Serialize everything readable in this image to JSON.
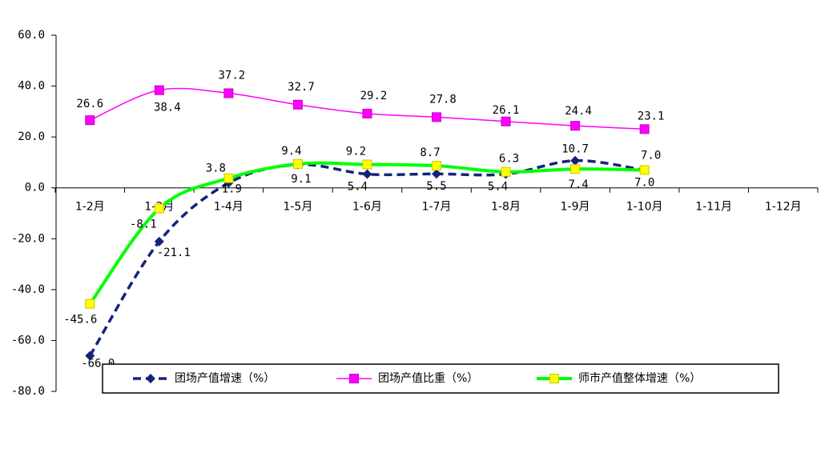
{
  "chart_data": {
    "type": "line",
    "categories": [
      "1-2月",
      "1-3月",
      "1-4月",
      "1-5月",
      "1-6月",
      "1-7月",
      "1-8月",
      "1-9月",
      "1-10月",
      "1-11月",
      "1-12月"
    ],
    "series": [
      {
        "name": "团场产值增速（%）",
        "color": "#14237a",
        "marker_color": "#14237a",
        "marker": "diamond",
        "dashed": true,
        "values": [
          -66.0,
          -21.1,
          1.9,
          9.1,
          5.4,
          5.5,
          5.4,
          10.7,
          7.0,
          null,
          null
        ],
        "value_labels": [
          "-66.0",
          "-21.1",
          "1.9",
          "9.1",
          "5.4",
          "5.5",
          "5.4",
          "10.7",
          "7.0",
          null,
          null
        ]
      },
      {
        "name": "团场产值比重（%）",
        "color": "#ff00ff",
        "marker_color": "#ff00ff",
        "marker": "square",
        "dashed": false,
        "values": [
          26.6,
          38.4,
          37.2,
          32.7,
          29.2,
          27.8,
          26.1,
          24.4,
          23.1,
          null,
          null
        ],
        "value_labels": [
          "26.6",
          "38.4",
          "37.2",
          "32.7",
          "29.2",
          "27.8",
          "26.1",
          "24.4",
          "23.1",
          null,
          null
        ]
      },
      {
        "name": "师市产值整体增速（%）",
        "color": "#00ff00",
        "marker_color": "#ffff00",
        "marker": "square",
        "dashed": false,
        "values": [
          -45.6,
          -8.1,
          3.8,
          9.4,
          9.2,
          8.7,
          6.3,
          7.4,
          7.0,
          null,
          null
        ],
        "value_labels": [
          "-45.6",
          "-8.1",
          "3.8",
          "9.4",
          "9.2",
          "8.7",
          "6.3",
          "7.4",
          "7.0",
          null,
          null
        ]
      }
    ],
    "ylim": [
      -80,
      60
    ],
    "yticks": [
      {
        "value": -80,
        "label": "-80.0"
      },
      {
        "value": -60,
        "label": "-60.0"
      },
      {
        "value": -40,
        "label": "-40.0"
      },
      {
        "value": -20,
        "label": "-20.0"
      },
      {
        "value": 0,
        "label": "0.0"
      },
      {
        "value": 20,
        "label": "20.0"
      },
      {
        "value": 40,
        "label": "40.0"
      },
      {
        "value": 60,
        "label": "60.0"
      }
    ],
    "grid": false,
    "smooth": true,
    "legend": "bottom"
  }
}
